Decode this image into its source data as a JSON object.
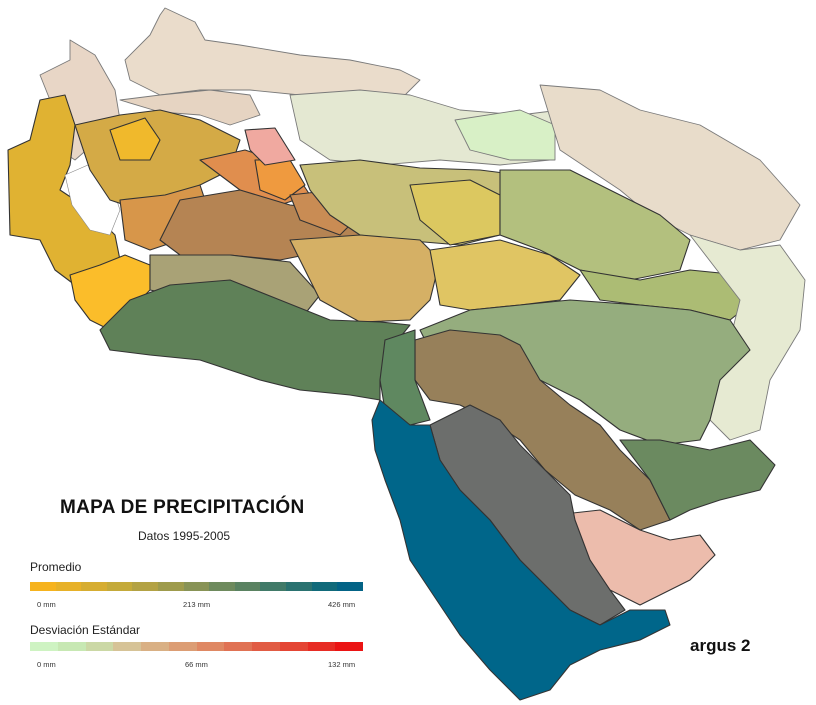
{
  "title": "MAPA DE PRECIPITACIÓN",
  "subtitle": "Datos 1995-2005",
  "legend": {
    "mean": {
      "label": "Promedio",
      "ticks": [
        "0 mm",
        "213 mm",
        "426 mm"
      ],
      "colors": [
        "#f6b31e",
        "#e7b128",
        "#d6ad31",
        "#c4aa3a",
        "#b3a244",
        "#9e9b4c",
        "#889356",
        "#6e8a5d",
        "#5a8261",
        "#417a68",
        "#2a7270",
        "#116a7a",
        "#036386"
      ]
    },
    "stdev": {
      "label": "Desviación Estándar",
      "ticks": [
        "0 mm",
        "66 mm",
        "132 mm"
      ],
      "colors": [
        "#cef3c2",
        "#c7e8b3",
        "#cbd8a5",
        "#d6c397",
        "#d9b084",
        "#dc9d74",
        "#df8863",
        "#e07254",
        "#e15c44",
        "#e44534",
        "#e72c24",
        "#eb1414"
      ]
    }
  },
  "brand": "argus 2"
}
